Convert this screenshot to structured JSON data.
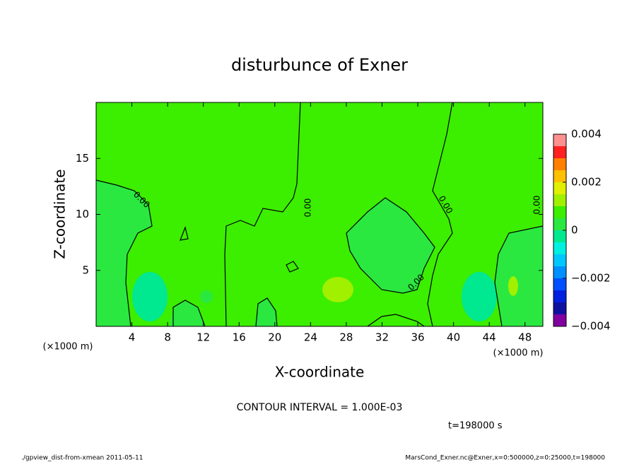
{
  "chart_data": {
    "type": "contour",
    "title": "disturbunce of Exner",
    "xlabel": "X-coordinate",
    "ylabel": "Z-coordinate",
    "xunit": "(×1000 m)",
    "yunit": "(×1000 m)",
    "xlim": [
      0,
      50
    ],
    "ylim": [
      0,
      20
    ],
    "xticks": [
      4,
      8,
      12,
      16,
      20,
      24,
      28,
      32,
      36,
      40,
      44,
      48
    ],
    "yticks": [
      5,
      10,
      15
    ],
    "colorbar": {
      "levels": [
        -0.004,
        -0.0035,
        -0.003,
        -0.0025,
        -0.002,
        -0.0015,
        -0.001,
        -0.0005,
        0,
        0.0005,
        0.001,
        0.0015,
        0.002,
        0.0025,
        0.003,
        0.0035,
        0.004
      ],
      "colors": [
        "#8000a0",
        "#1010a0",
        "#0020e0",
        "#0050ff",
        "#0090ff",
        "#00c8ff",
        "#00f0e0",
        "#00e890",
        "#2ae840",
        "#3cee00",
        "#a0f000",
        "#e0f000",
        "#ffc000",
        "#ff8000",
        "#ff2020",
        "#ff9090"
      ],
      "ticks": [
        {
          "value": -0.004,
          "label": "−0.004"
        },
        {
          "value": -0.002,
          "label": "−0.002"
        },
        0,
        0.002,
        0.004
      ]
    },
    "contour_labels": [
      "0.00",
      "0.00",
      "0.00",
      "0.00",
      "0.00"
    ],
    "note": "CONTOUR INTERVAL = 1.000E-03",
    "time": "t=198000 s",
    "footer_left": "./gpview_dist-from-xmean  2011-05-11",
    "footer_right": "MarsCond_Exner.nc@Exner,x=0:500000,z=0:25000,t=198000"
  }
}
